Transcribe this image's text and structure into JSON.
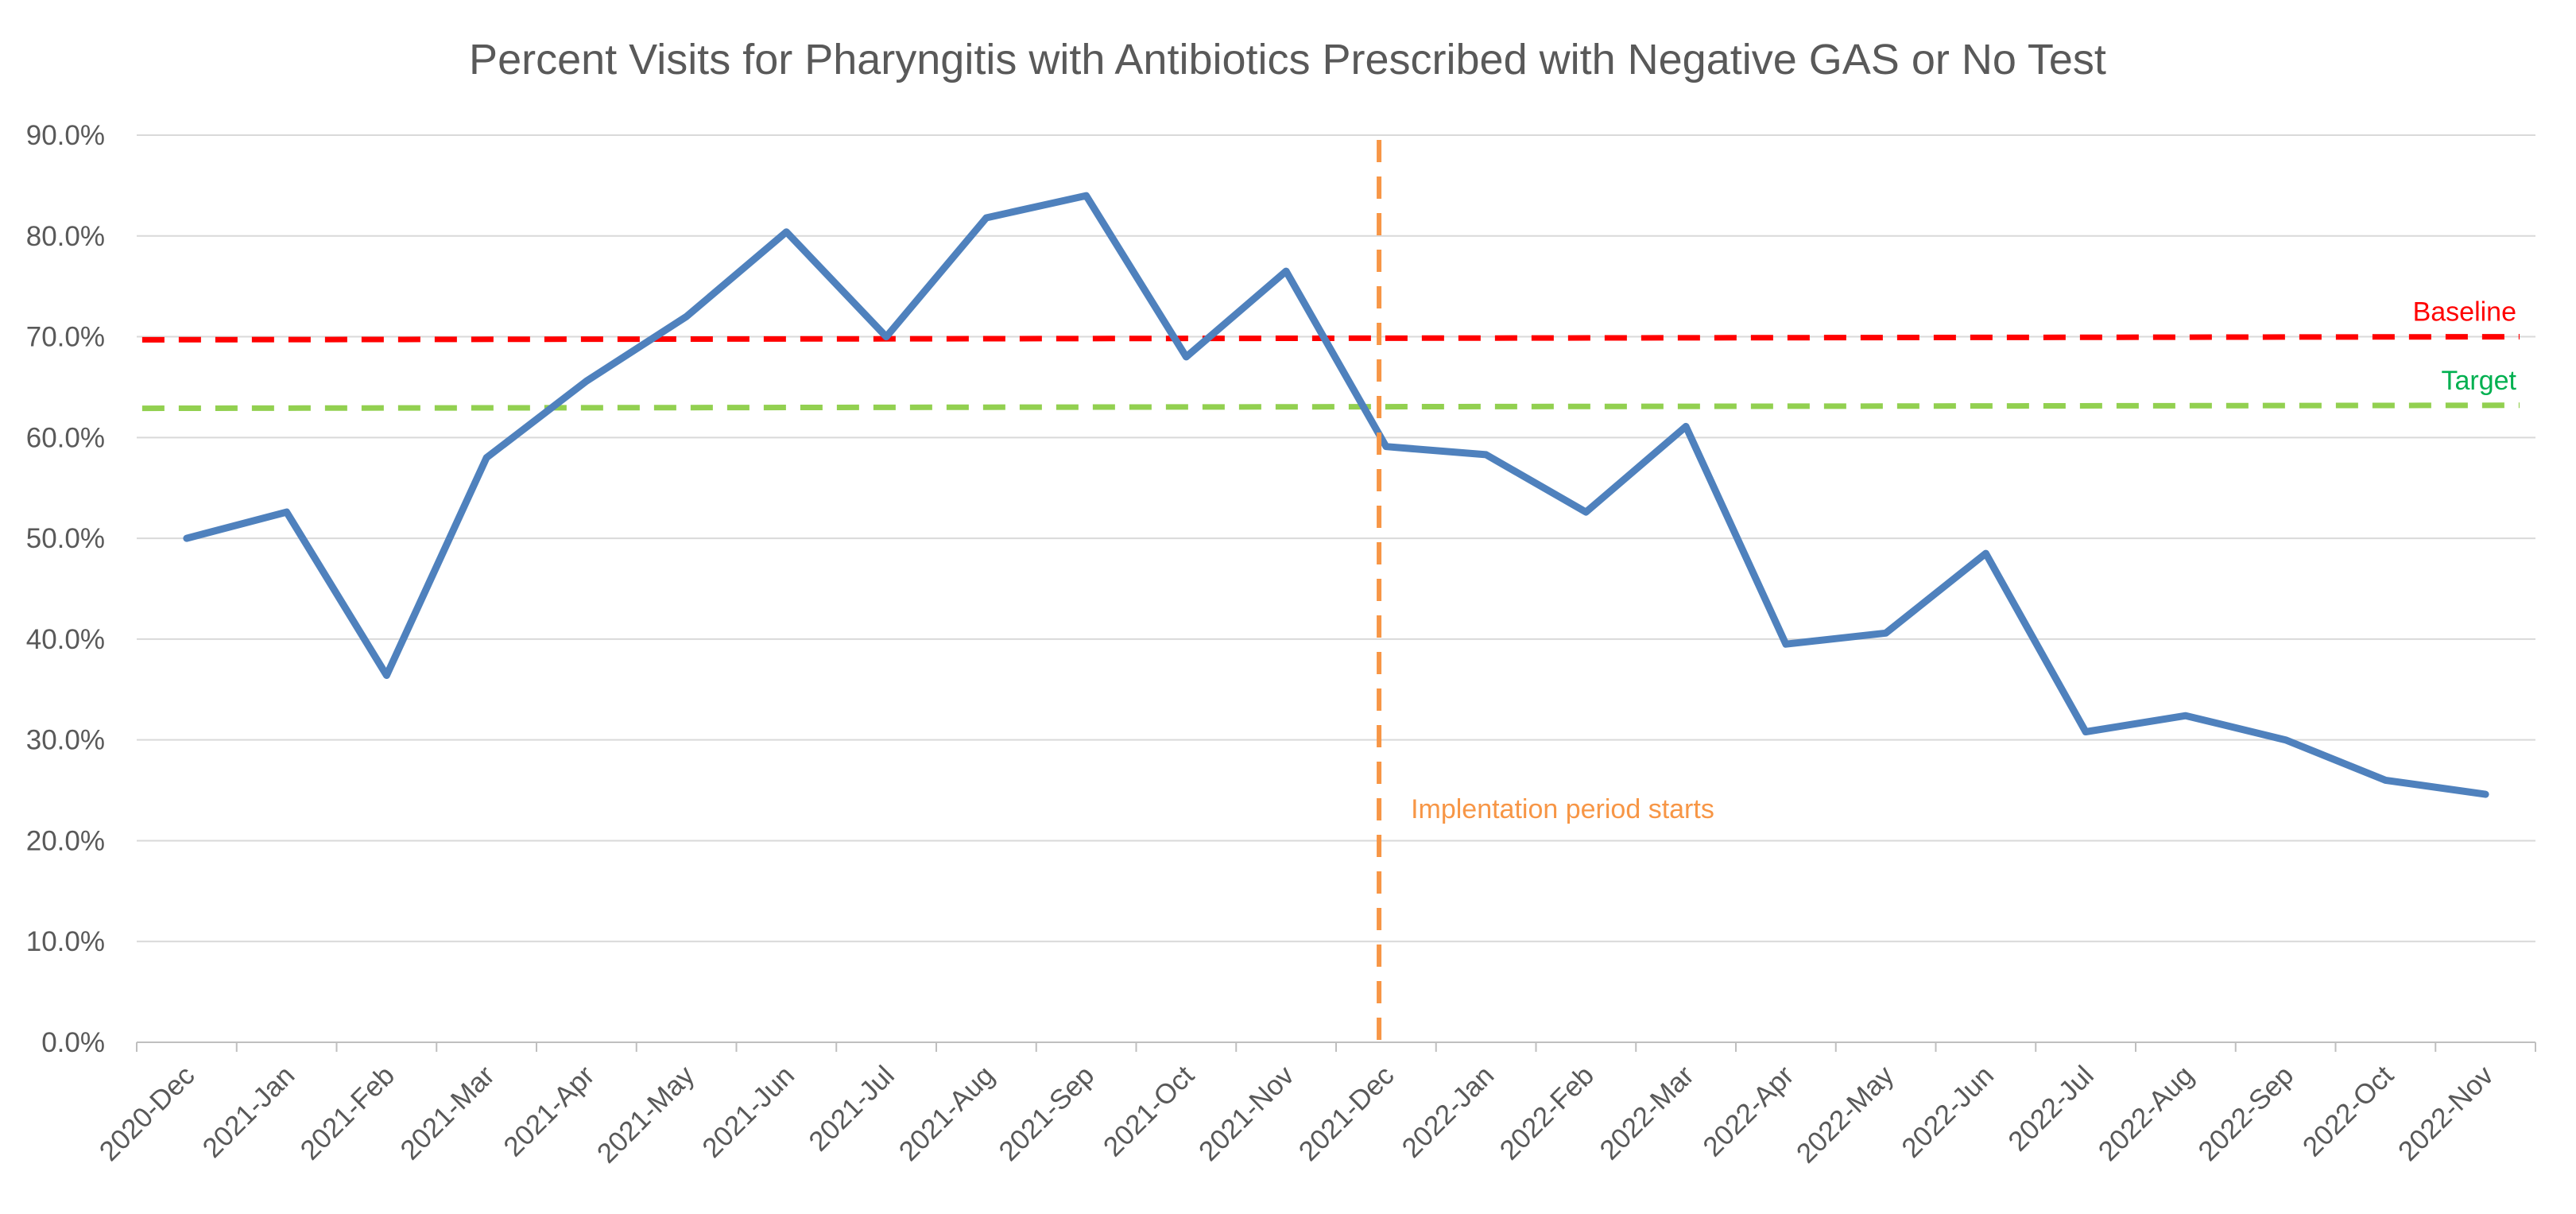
{
  "chart_data": {
    "type": "line",
    "title": "Percent Visits for Pharyngitis with Antibiotics Prescribed with Negative GAS or No Test",
    "xlabel": "",
    "ylabel": "",
    "ylim": [
      0,
      90
    ],
    "y_ticks": [
      "0.0%",
      "10.0%",
      "20.0%",
      "30.0%",
      "40.0%",
      "50.0%",
      "60.0%",
      "70.0%",
      "80.0%",
      "90.0%"
    ],
    "grid": true,
    "categories": [
      "2020-Dec",
      "2021-Jan",
      "2021-Feb",
      "2021-Mar",
      "2021-Apr",
      "2021-May",
      "2021-Jun",
      "2021-Jul",
      "2021-Aug",
      "2021-Sep",
      "2021-Oct",
      "2021-Nov",
      "2021-Dec",
      "2022-Jan",
      "2022-Feb",
      "2022-Mar",
      "2022-Apr",
      "2022-May",
      "2022-Jun",
      "2022-Jul",
      "2022-Aug",
      "2022-Sep",
      "2022-Oct",
      "2022-Nov"
    ],
    "series": [
      {
        "values": [
          50.0,
          52.6,
          36.4,
          58.0,
          65.6,
          72.0,
          80.4,
          70.0,
          81.8,
          84.0,
          68.0,
          76.5,
          59.1,
          58.3,
          52.6,
          61.1,
          39.5,
          40.6,
          48.5,
          30.8,
          32.4,
          30.0,
          26.0,
          24.6
        ],
        "color": "#4f81bd"
      }
    ],
    "reference_lines": {
      "baseline": {
        "label": "Baseline",
        "start": 69.7,
        "end": 70.0,
        "color": "#ff0000"
      },
      "target": {
        "label": "Target",
        "start": 62.9,
        "end": 63.2,
        "color": "#92d050",
        "label_color": "#00b050"
      }
    },
    "annotation": {
      "label": "Implentation period starts",
      "position_between": [
        "2021-Nov",
        "2021-Dec"
      ],
      "color": "#f79646"
    }
  }
}
